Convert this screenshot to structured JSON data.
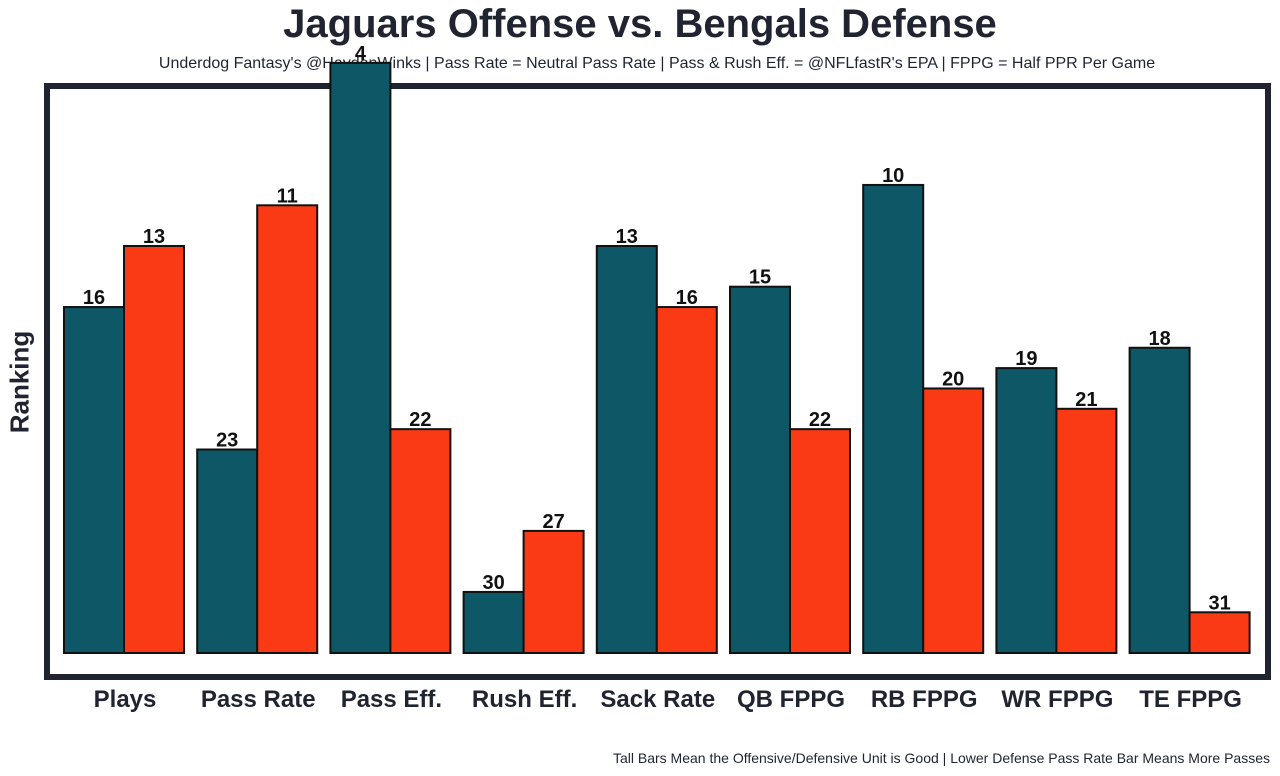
{
  "chart_data": {
    "type": "bar",
    "title": "Jaguars Offense vs. Bengals Defense",
    "subtitle": "Underdog Fantasy's @HaydenWinks | Pass Rate = Neutral Pass Rate | Pass & Rush Eff. = @NFLfastR's EPA | FPPG = Half PPR Per Game",
    "footer": "Tall Bars Mean the Offensive/Defensive Unit is Good | Lower Defense Pass Rate Bar Means More Passes",
    "xlabel": "",
    "ylabel": "Ranking",
    "categories": [
      "Plays",
      "Pass Rate",
      "Pass Eff.",
      "Rush Eff.",
      "Sack Rate",
      "QB FPPG",
      "RB FPPG",
      "WR FPPG",
      "TE FPPG"
    ],
    "series": [
      {
        "name": "Jaguars Offense",
        "color": "#0d5766",
        "values": [
          16,
          23,
          4,
          30,
          13,
          15,
          10,
          19,
          18
        ]
      },
      {
        "name": "Bengals Defense",
        "color": "#f93a14",
        "values": [
          13,
          11,
          22,
          27,
          16,
          22,
          20,
          21,
          31
        ]
      }
    ],
    "value_note": "Bars are inverted rankings: bar height = 33 - rank",
    "rank_max": 33,
    "legend": "none",
    "grid": false,
    "frame_color": "#1f2430"
  }
}
